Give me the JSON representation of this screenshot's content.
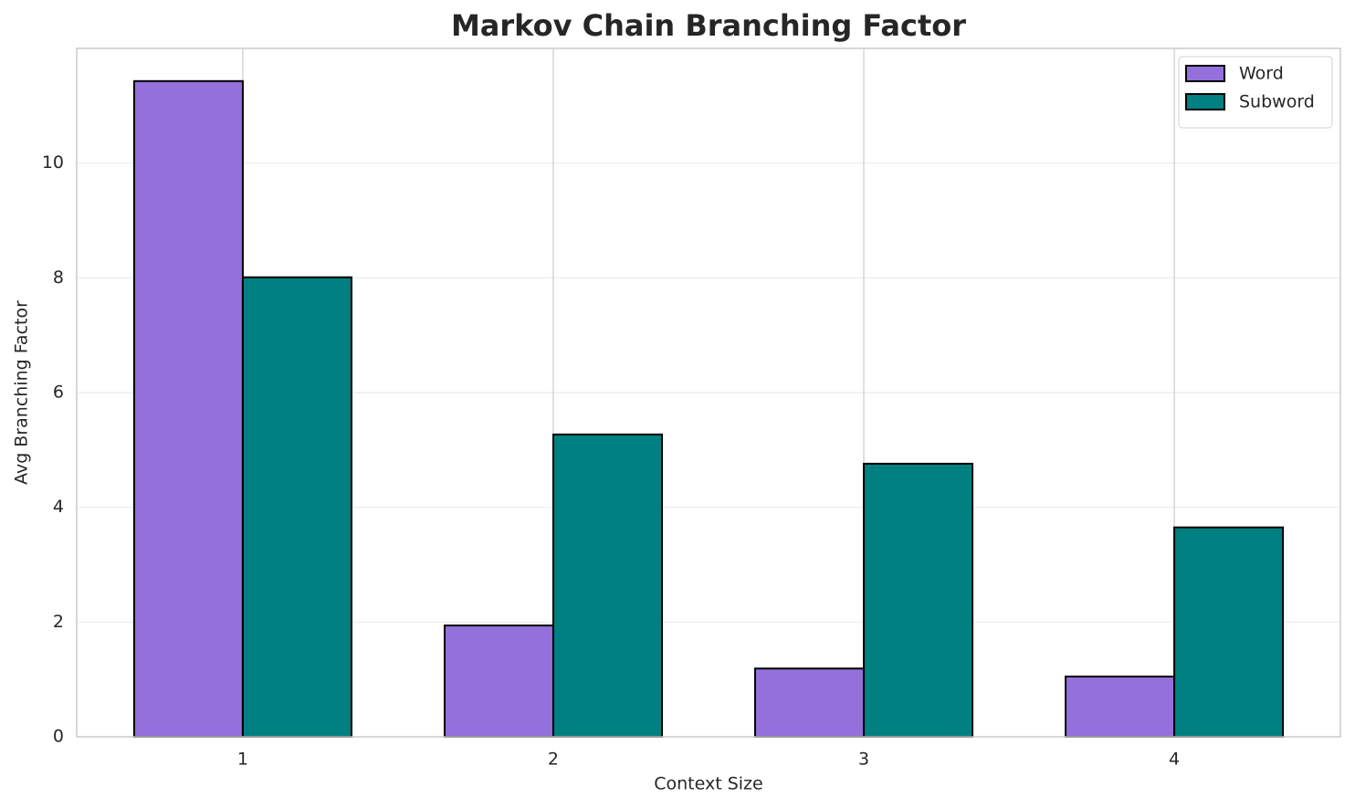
{
  "chart_data": {
    "type": "bar",
    "title": "Markov Chain Branching Factor",
    "x_label": "Context Size",
    "y_label": "Avg Branching Factor",
    "x": [
      1,
      2,
      3,
      4
    ],
    "series": [
      {
        "name": "Word",
        "color": "#9370db",
        "values": [
          11.43,
          1.94,
          1.19,
          1.05
        ]
      },
      {
        "name": "Subword",
        "color": "#008080",
        "values": [
          8.01,
          5.27,
          4.76,
          3.65
        ]
      }
    ],
    "xlim": [
      0.465,
      4.535
    ],
    "xticks": [
      1,
      2,
      3,
      4
    ],
    "ylim": [
      0,
      12
    ],
    "yticks": [
      0,
      2,
      4,
      6,
      8,
      10
    ],
    "grid": true,
    "legend": "upper right"
  }
}
